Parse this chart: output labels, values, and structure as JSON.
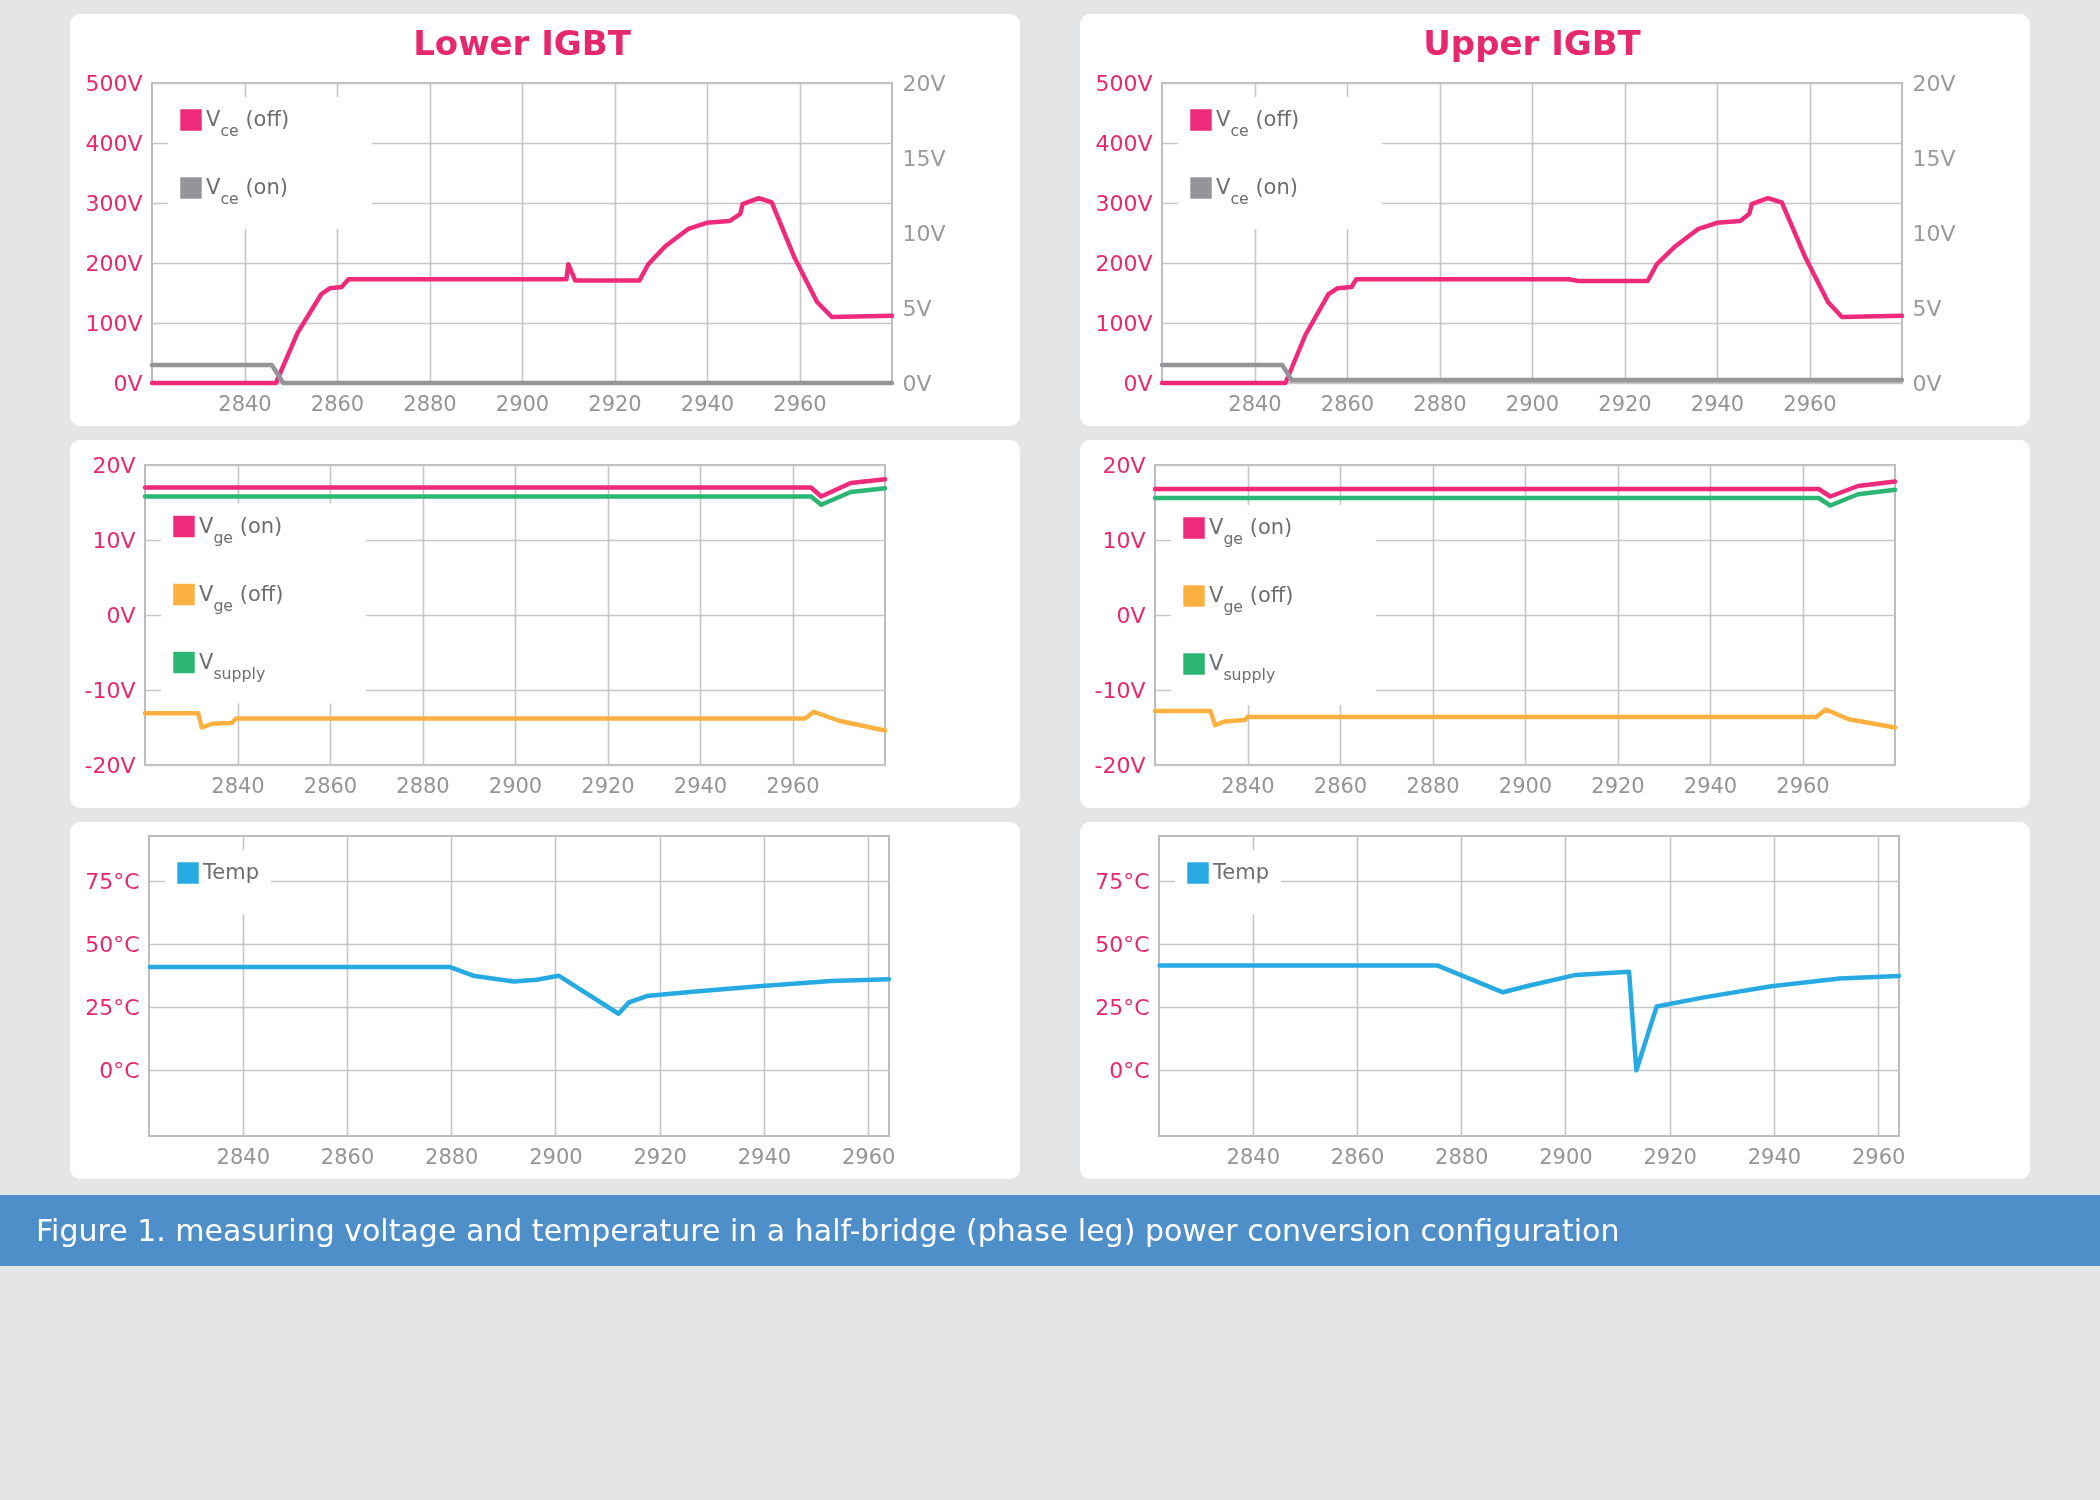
{
  "chart_data": [
    {
      "type": "line",
      "title": "Lower IGBT",
      "xlim": [
        2820,
        2980
      ],
      "xticks": [
        2840,
        2860,
        2880,
        2900,
        2920,
        2940,
        2960
      ],
      "ylim": [
        0,
        500
      ],
      "yticks": [
        {
          "value": 0,
          "label": "0V"
        },
        {
          "value": 100,
          "label": "100V"
        },
        {
          "value": 200,
          "label": "200V"
        },
        {
          "value": 300,
          "label": "300V"
        },
        {
          "value": 400,
          "label": "400V"
        },
        {
          "value": 500,
          "label": "500V"
        }
      ],
      "y2lim": [
        0,
        20
      ],
      "y2ticks": [
        {
          "value": 0,
          "label": "0V"
        },
        {
          "value": 5,
          "label": "5V"
        },
        {
          "value": 10,
          "label": "10V"
        },
        {
          "value": 15,
          "label": "15V"
        },
        {
          "value": 20,
          "label": "20V"
        }
      ],
      "grid": true,
      "legend": "top left",
      "series": [
        {
          "name": "V$_{ce}$ (off)",
          "color": "#ee2a7b",
          "x": [
            2820,
            2846.8,
            2851.5,
            2856.6,
            2858.5,
            2861,
            2862.5,
            2909.6,
            2910,
            2911.5,
            2925.4,
            2927.3,
            2931,
            2936,
            2939.9,
            2944.9,
            2947.2,
            2947.7,
            2951.2,
            2954,
            2958.8,
            2963.8,
            2967,
            2980
          ],
          "values": [
            0,
            0,
            84,
            148,
            158,
            160,
            173,
            173,
            198,
            171,
            171,
            198,
            228,
            257,
            267,
            270,
            282,
            298,
            308,
            301,
            211,
            135,
            110,
            112
          ]
        },
        {
          "name": "V$_{ce}$ (on)",
          "color": "#939598",
          "axis": "y2",
          "x": [
            2820,
            2845.9,
            2848.4,
            2980
          ],
          "values": [
            1.2,
            1.2,
            0,
            0
          ]
        }
      ]
    },
    {
      "type": "line",
      "title": "Upper IGBT",
      "xlim": [
        2820,
        2980
      ],
      "xticks": [
        2840,
        2860,
        2880,
        2900,
        2920,
        2940,
        2960
      ],
      "ylim": [
        0,
        500
      ],
      "yticks": [
        {
          "value": 0,
          "label": "0V"
        },
        {
          "value": 100,
          "label": "100V"
        },
        {
          "value": 200,
          "label": "200V"
        },
        {
          "value": 300,
          "label": "300V"
        },
        {
          "value": 400,
          "label": "400V"
        },
        {
          "value": 500,
          "label": "500V"
        }
      ],
      "y2lim": [
        0,
        20
      ],
      "y2ticks": [
        {
          "value": 0,
          "label": "0V"
        },
        {
          "value": 5,
          "label": "5V"
        },
        {
          "value": 10,
          "label": "10V"
        },
        {
          "value": 15,
          "label": "15V"
        },
        {
          "value": 20,
          "label": "20V"
        }
      ],
      "grid": true,
      "legend": "top left",
      "series": [
        {
          "name": "V$_{ce}$ (off)",
          "color": "#ee2a7b",
          "x": [
            2820,
            2846.7,
            2851,
            2856,
            2858,
            2861,
            2862,
            2908,
            2910,
            2925,
            2927,
            2931,
            2936,
            2940,
            2945,
            2947,
            2947.5,
            2951,
            2954,
            2959,
            2964,
            2967,
            2980
          ],
          "values": [
            0,
            0,
            80,
            148,
            158,
            160,
            173,
            173,
            170,
            170,
            198,
            228,
            257,
            267,
            270,
            282,
            298,
            308,
            301,
            211,
            135,
            110,
            112
          ]
        },
        {
          "name": "V$_{ce}$ (on)",
          "color": "#939598",
          "axis": "y2",
          "x": [
            2820,
            2846,
            2848,
            2980
          ],
          "values": [
            1.2,
            1.2,
            0.2,
            0.2
          ]
        }
      ]
    },
    {
      "type": "line",
      "xlim": [
        2820,
        2980
      ],
      "xticks": [
        2840,
        2860,
        2880,
        2900,
        2920,
        2940,
        2960
      ],
      "ylim": [
        -20,
        20
      ],
      "yticks": [
        {
          "value": -20,
          "label": "-20V"
        },
        {
          "value": -10,
          "label": "-10V"
        },
        {
          "value": 0,
          "label": "0V"
        },
        {
          "value": 10,
          "label": "10V"
        },
        {
          "value": 20,
          "label": "20V"
        }
      ],
      "grid": true,
      "legend": "top left",
      "series": [
        {
          "name": "V$_{ge}$ (on)",
          "color": "#ee2a7b",
          "x": [
            2820,
            2964,
            2966.2,
            2972.6,
            2980
          ],
          "values": [
            17,
            17,
            15.8,
            17.6,
            18.1
          ]
        },
        {
          "name": "V$_{ge}$ (off)",
          "color": "#fbb040",
          "x": [
            2820,
            2831.5,
            2832.3,
            2834.5,
            2838.7,
            2839.7,
            2962.7,
            2964.6,
            2970,
            2980
          ],
          "values": [
            -13.1,
            -13.1,
            -15,
            -14.5,
            -14.4,
            -13.8,
            -13.8,
            -12.9,
            -14.1,
            -15.4
          ]
        },
        {
          "name": "V$_{supply}$",
          "color": "#2bb673",
          "x": [
            2820,
            2964,
            2966.2,
            2972.6,
            2980
          ],
          "values": [
            15.8,
            15.8,
            14.7,
            16.4,
            16.9
          ]
        }
      ]
    },
    {
      "type": "line",
      "xlim": [
        2820,
        2980
      ],
      "xticks": [
        2840,
        2860,
        2880,
        2900,
        2920,
        2940,
        2960
      ],
      "ylim": [
        -20,
        20
      ],
      "yticks": [
        {
          "value": -20,
          "label": "-20V"
        },
        {
          "value": -10,
          "label": "-10V"
        },
        {
          "value": 0,
          "label": "0V"
        },
        {
          "value": 10,
          "label": "10V"
        },
        {
          "value": 20,
          "label": "20V"
        }
      ],
      "grid": true,
      "legend": "top left",
      "series": [
        {
          "name": "V$_{ge}$ (on)",
          "color": "#ee2a7b",
          "x": [
            2820,
            2963.5,
            2966,
            2972,
            2980
          ],
          "values": [
            16.8,
            16.8,
            15.8,
            17.2,
            17.8
          ]
        },
        {
          "name": "V$_{ge}$ (off)",
          "color": "#fbb040",
          "x": [
            2820,
            2832,
            2833,
            2835,
            2839.5,
            2840,
            2963,
            2965,
            2970,
            2980
          ],
          "values": [
            -12.8,
            -12.8,
            -14.7,
            -14.2,
            -14,
            -13.6,
            -13.6,
            -12.6,
            -13.9,
            -15
          ]
        },
        {
          "name": "V$_{supply}$",
          "color": "#2bb673",
          "x": [
            2820,
            2963.5,
            2966,
            2972,
            2980
          ],
          "values": [
            15.6,
            15.6,
            14.6,
            16.1,
            16.7
          ]
        }
      ]
    },
    {
      "type": "line",
      "xlim": [
        2822,
        2964
      ],
      "xticks": [
        2840,
        2860,
        2880,
        2900,
        2920,
        2940,
        2960
      ],
      "ylim": [
        -26,
        93
      ],
      "yticks": [
        {
          "value": 0,
          "label": "0°C"
        },
        {
          "value": 25,
          "label": "25°C"
        },
        {
          "value": 50,
          "label": "50°C"
        },
        {
          "value": 75,
          "label": "75°C"
        }
      ],
      "grid": true,
      "legend": "top left",
      "series": [
        {
          "name": "Temp",
          "color": "#27aae1",
          "x": [
            2822.2,
            2879.8,
            2884.2,
            2892,
            2896.4,
            2900.6,
            2912.1,
            2914.1,
            2917.5,
            2926.3,
            2939.6,
            2952.9,
            2964
          ],
          "values": [
            41,
            41,
            37.6,
            35.3,
            36,
            37.6,
            22.5,
            27,
            29.5,
            31.2,
            33.5,
            35.5,
            36.2
          ]
        }
      ]
    },
    {
      "type": "line",
      "xlim": [
        2822,
        2964
      ],
      "xticks": [
        2840,
        2860,
        2880,
        2900,
        2920,
        2940,
        2960
      ],
      "ylim": [
        -26,
        93
      ],
      "yticks": [
        {
          "value": 0,
          "label": "0°C"
        },
        {
          "value": 25,
          "label": "25°C"
        },
        {
          "value": 50,
          "label": "50°C"
        },
        {
          "value": 75,
          "label": "75°C"
        }
      ],
      "grid": true,
      "legend": "top left",
      "annotations": [
        "Figure 1. measuring voltage and temperature in a half-bridge (phase leg) power conversion configuration"
      ],
      "series": [
        {
          "name": "Temp",
          "color": "#27aae1",
          "x": [
            2822.1,
            2875.5,
            2888,
            2893.3,
            2902,
            2912.2,
            2913.6,
            2917.5,
            2926.3,
            2939.5,
            2952.6,
            2964
          ],
          "values": [
            41.6,
            41.6,
            31,
            33.8,
            37.9,
            39.2,
            0,
            25.4,
            28.9,
            33.4,
            36.5,
            37.5
          ]
        }
      ]
    }
  ]
}
